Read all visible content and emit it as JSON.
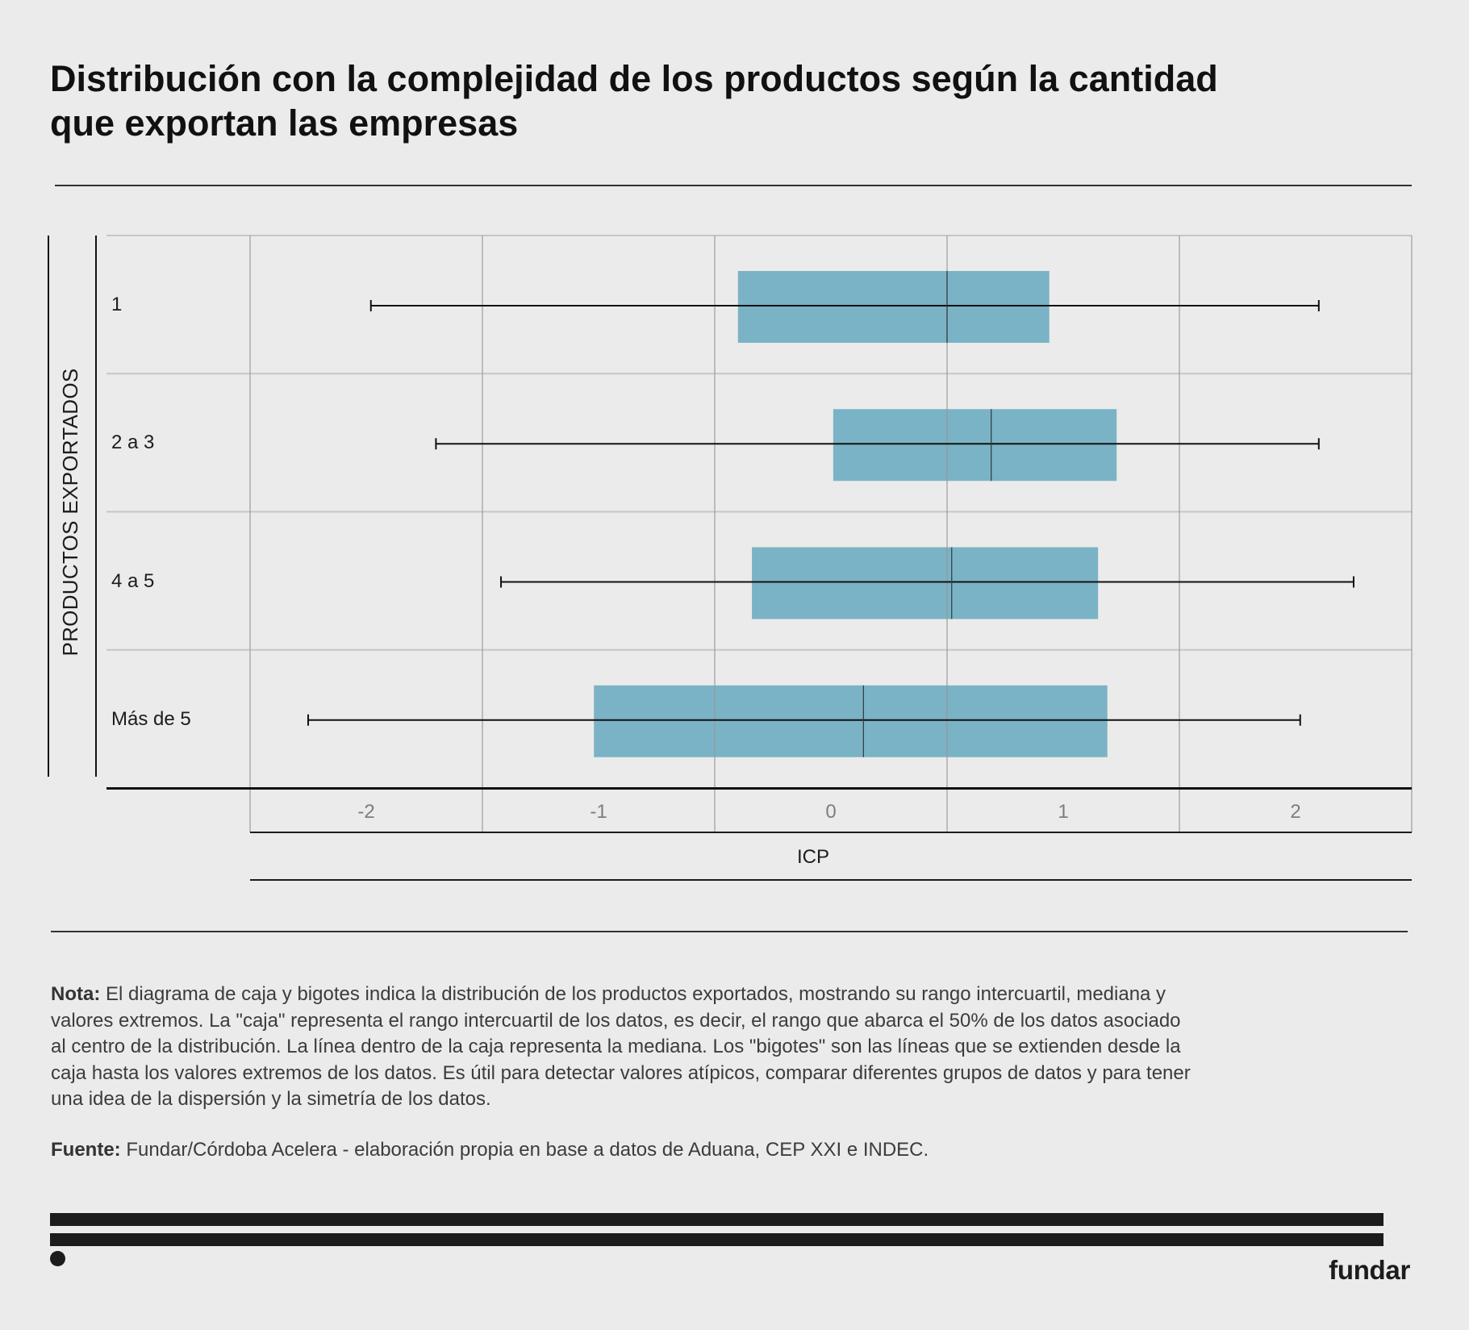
{
  "chart_data": {
    "type": "boxplot",
    "orientation": "horizontal",
    "title_lines": [
      "Distribución con la complejidad de los productos según la cantidad",
      "que exportan las empresas"
    ],
    "xlabel": "ICP",
    "ylabel": "PRODUCTOS EXPORTADOS",
    "categories": [
      "1",
      "2 a 3",
      "4 a 5",
      "Más de 5"
    ],
    "series": [
      {
        "name": "ICP",
        "min": [
          -1.98,
          -1.7,
          -1.42,
          -2.25
        ],
        "q1": [
          -0.4,
          0.01,
          -0.34,
          -1.02
        ],
        "median": [
          0.5,
          0.69,
          0.52,
          0.14
        ],
        "q3": [
          0.94,
          1.23,
          1.15,
          1.19
        ],
        "max": [
          2.1,
          2.1,
          2.25,
          2.02
        ]
      }
    ],
    "xticks": [
      -2,
      -1,
      0,
      1,
      2
    ],
    "xtick_labels": [
      "-2",
      "-1",
      "0",
      "1",
      "2"
    ],
    "xlim": [
      -2.5,
      2.5
    ],
    "gridlines_x": [
      -2.5,
      -1.5,
      -0.5,
      0.5,
      1.5,
      2.5
    ],
    "grid": true,
    "legend": "none",
    "colors": {
      "box": "#7AB3C5",
      "whisker": "#111111",
      "median": "#2B3A3F",
      "grid": "#C6C6C6",
      "background": "#EBEBEB"
    }
  },
  "notes": {
    "label": "Nota:",
    "lines": [
      "El diagrama de caja y bigotes indica la distribución de los productos exportados, mostrando su rango intercuartil, mediana y",
      "valores extremos. La \"caja\" representa el rango intercuartil de los datos, es decir, el rango que abarca el 50% de los datos asociado",
      "al centro de la distribución. La línea dentro de la caja representa la mediana. Los \"bigotes\" son las líneas que se extienden desde la",
      "caja hasta los valores extremos de los datos. Es útil para detectar valores atípicos, comparar diferentes grupos de datos y para tener",
      "una idea de la dispersión y la simetría de los datos."
    ]
  },
  "source": {
    "label": "Fuente:",
    "text": "Fundar/Córdoba Acelera - elaboración propia en base a datos de Aduana, CEP XXI e INDEC."
  },
  "brand": {
    "logo_text": "fundar"
  }
}
